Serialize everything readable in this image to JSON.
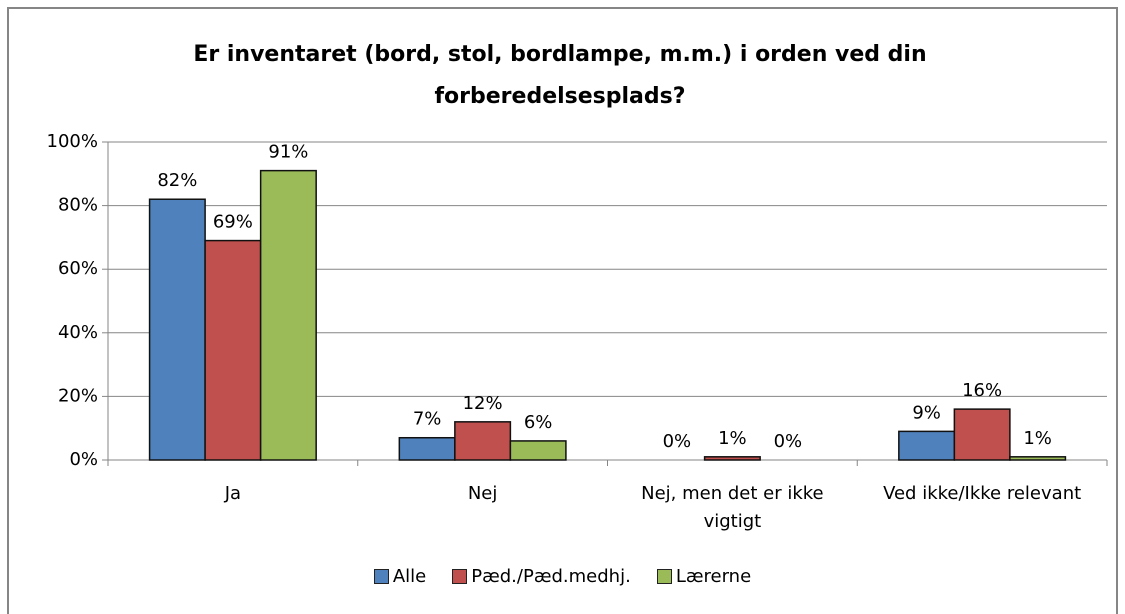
{
  "chart_data": {
    "type": "bar",
    "title": "Er inventaret (bord, stol, bordlampe, m.m.) i orden ved din forberedelsesplads?",
    "categories": [
      "Ja",
      "Nej",
      "Nej, men det er ikke vigtigt",
      "Ved ikke/Ikke relevant"
    ],
    "series": [
      {
        "name": "Alle",
        "color": "#4f81bd",
        "values": [
          82,
          7,
          0,
          9
        ],
        "value_labels": [
          "82%",
          "7%",
          "0%",
          "9%"
        ]
      },
      {
        "name": "Pæd./Pæd.medhj.",
        "color": "#c0504d",
        "values": [
          69,
          12,
          1,
          16
        ],
        "value_labels": [
          "69%",
          "12%",
          "1%",
          "16%"
        ]
      },
      {
        "name": "Lærerne",
        "color": "#9bbb59",
        "values": [
          91,
          6,
          0,
          1
        ],
        "value_labels": [
          "91%",
          "6%",
          "0%",
          "1%"
        ]
      }
    ],
    "ylim": [
      0,
      100
    ],
    "yticks": [
      {
        "value": 0,
        "label": "0%"
      },
      {
        "value": 20,
        "label": "20%"
      },
      {
        "value": 40,
        "label": "40%"
      },
      {
        "value": 60,
        "label": "60%"
      },
      {
        "value": 80,
        "label": "80%"
      },
      {
        "value": 100,
        "label": "100%"
      }
    ],
    "grid": true,
    "legend": "bottom"
  }
}
